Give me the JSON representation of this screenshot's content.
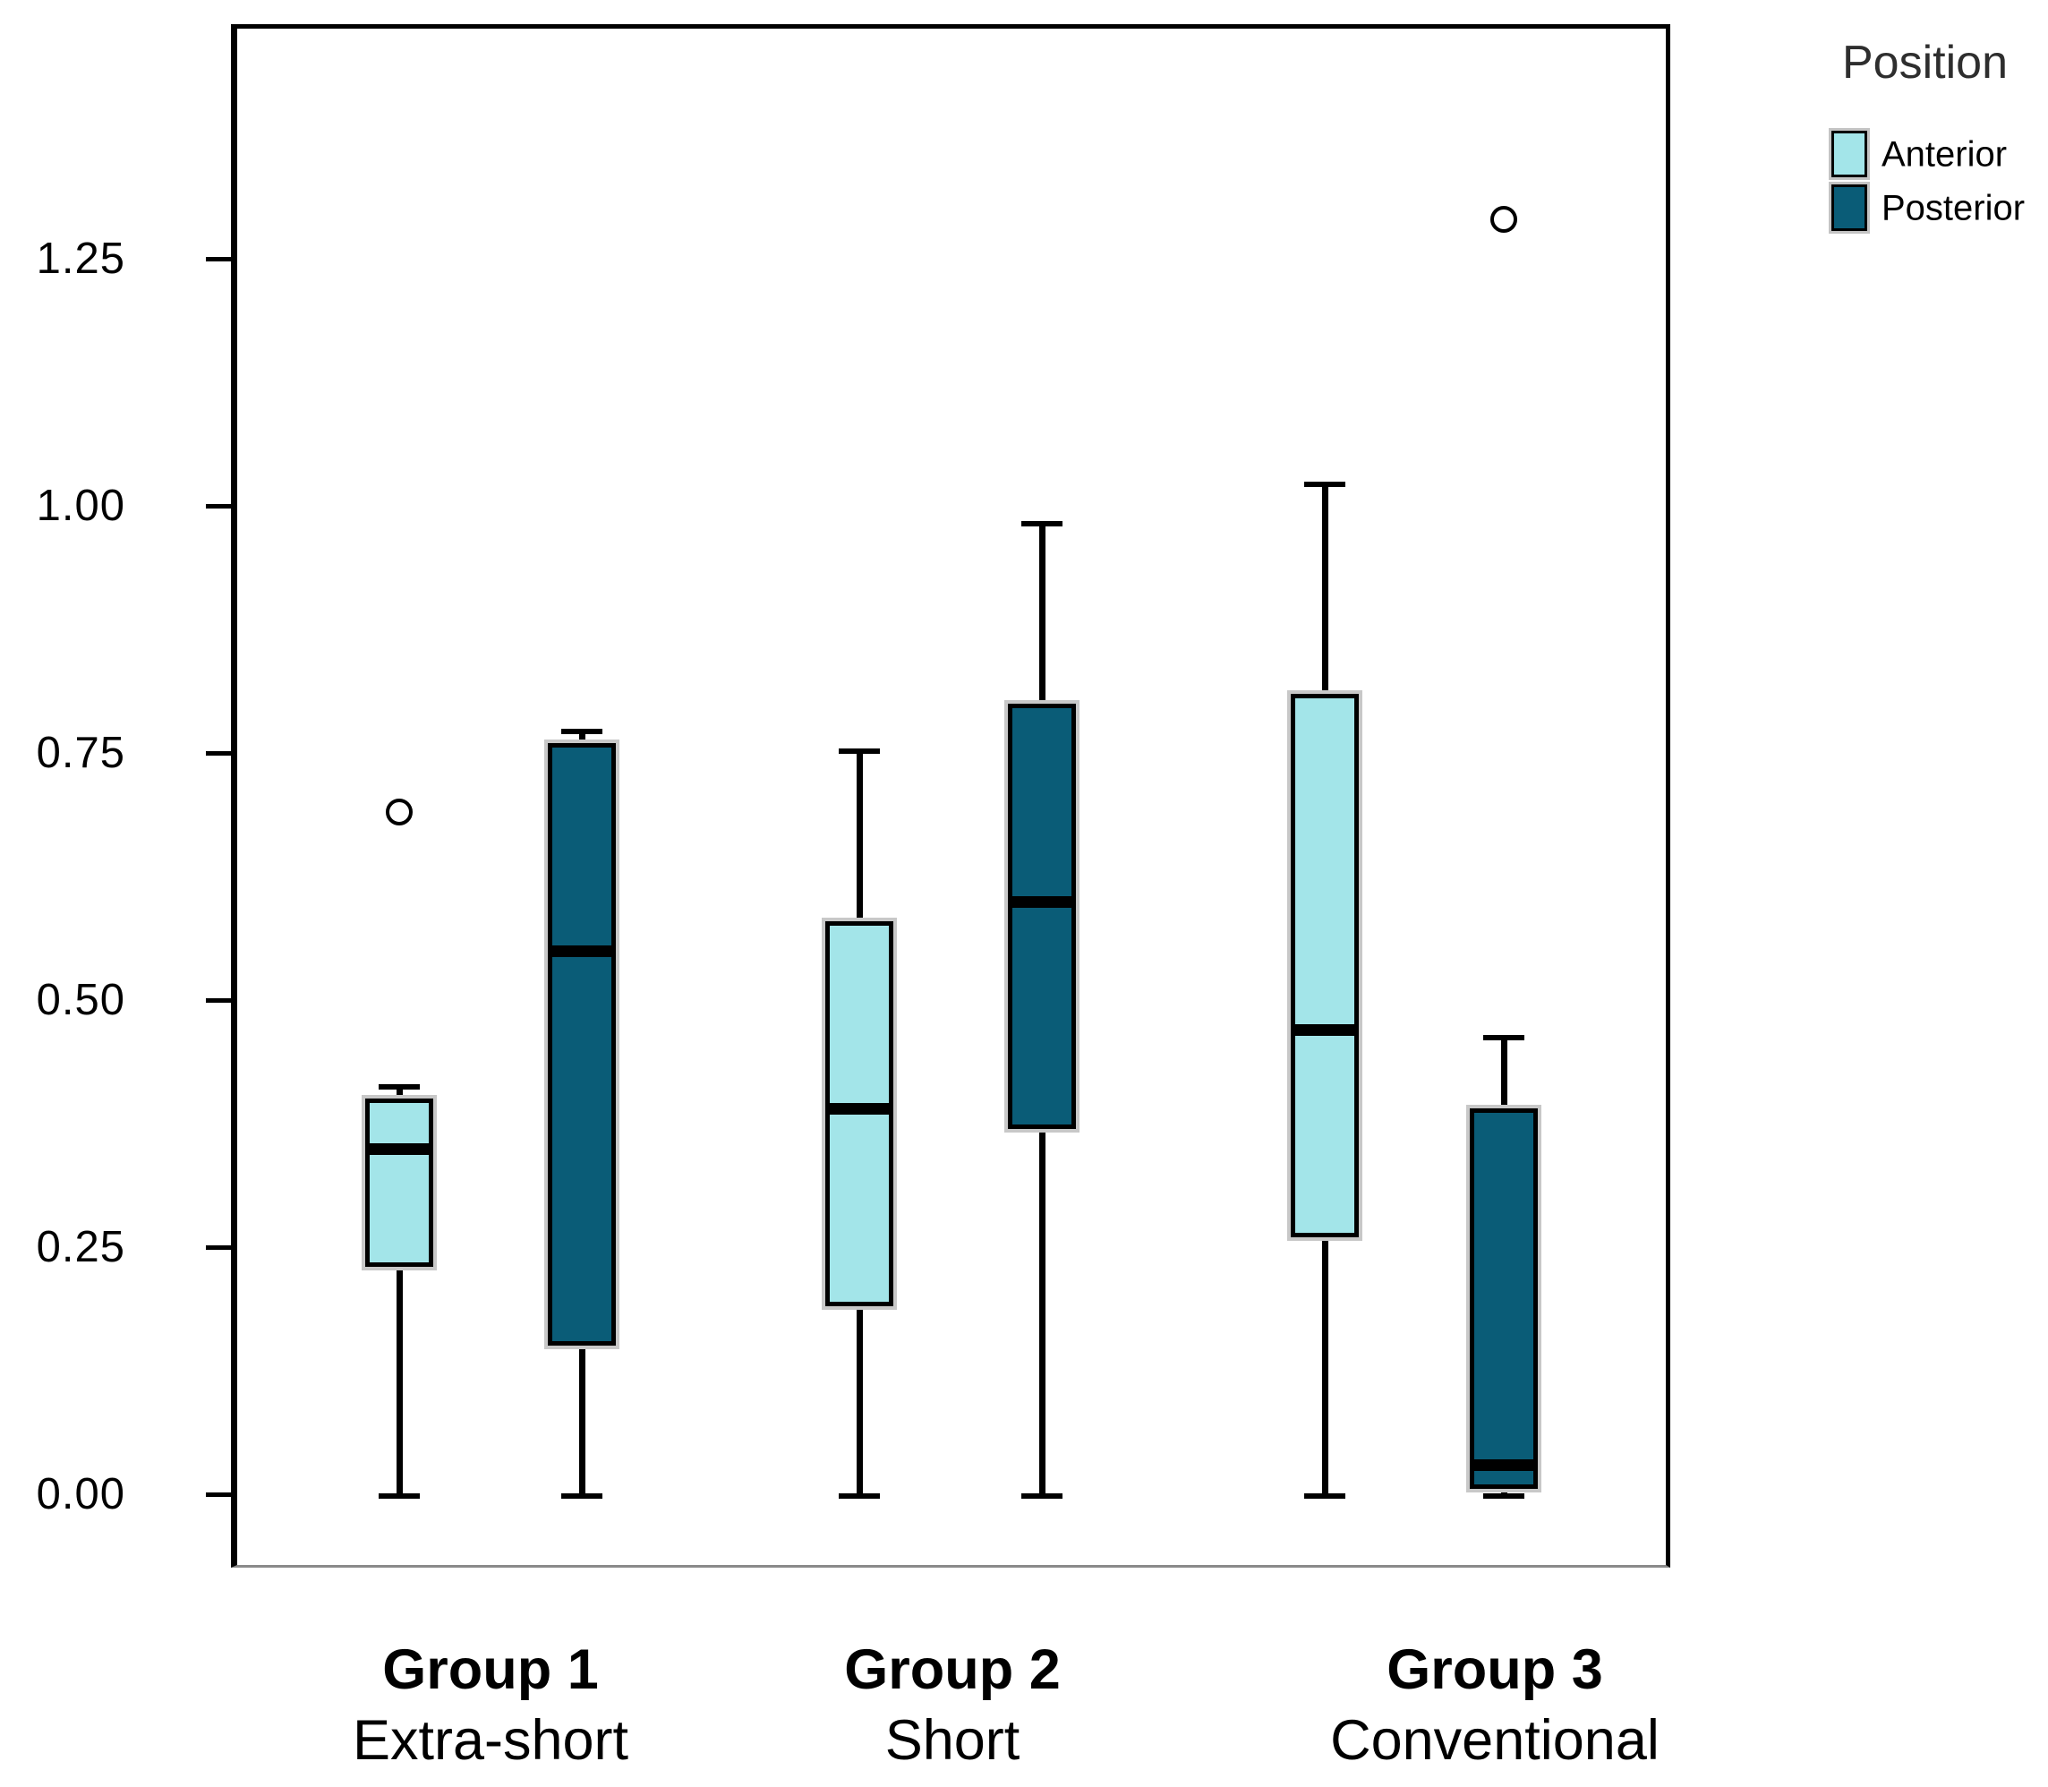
{
  "chart_data": {
    "type": "boxplot",
    "title": "",
    "xlabel": "",
    "ylabel": "",
    "ylim": [
      -0.07,
      1.48
    ],
    "grid": false,
    "legend_position": "top-right",
    "y_axis": {
      "ticks": [
        {
          "label": "0.00",
          "value": 0.0
        },
        {
          "label": "0.25",
          "value": 0.25
        },
        {
          "label": "0.50",
          "value": 0.5
        },
        {
          "label": "0.75",
          "value": 0.75
        },
        {
          "label": "1.00",
          "value": 1.0
        },
        {
          "label": "1.25",
          "value": 1.25
        }
      ]
    },
    "legend": {
      "title": "Position",
      "items": [
        {
          "label": "Anterior",
          "color": "#A3E5E9"
        },
        {
          "label": "Posterior",
          "color": "#0A5C77"
        }
      ]
    },
    "groups": [
      {
        "label": "Group 1",
        "sublabel": "Extra-short",
        "series": [
          {
            "name": "Anterior",
            "min": 0.0,
            "q1": 0.23,
            "median": 0.35,
            "q3": 0.4,
            "max": 0.41,
            "outliers": [
              0.69
            ]
          },
          {
            "name": "Posterior",
            "min": 0.0,
            "q1": 0.15,
            "median": 0.55,
            "q3": 0.76,
            "max": 0.77,
            "outliers": []
          }
        ]
      },
      {
        "label": "Group 2",
        "sublabel": "Short",
        "series": [
          {
            "name": "Anterior",
            "min": 0.0,
            "q1": 0.19,
            "median": 0.39,
            "q3": 0.58,
            "max": 0.75,
            "outliers": []
          },
          {
            "name": "Posterior",
            "min": 0.0,
            "q1": 0.37,
            "median": 0.6,
            "q3": 0.8,
            "max": 0.98,
            "outliers": []
          }
        ]
      },
      {
        "label": "Group 3",
        "sublabel": "Conventional",
        "series": [
          {
            "name": "Anterior",
            "min": 0.0,
            "q1": 0.26,
            "median": 0.47,
            "q3": 0.81,
            "max": 1.02,
            "outliers": []
          },
          {
            "name": "Posterior",
            "min": 0.0,
            "q1": 0.005,
            "median": 0.03,
            "q3": 0.39,
            "max": 0.46,
            "outliers": [
              1.29
            ]
          }
        ]
      }
    ]
  }
}
